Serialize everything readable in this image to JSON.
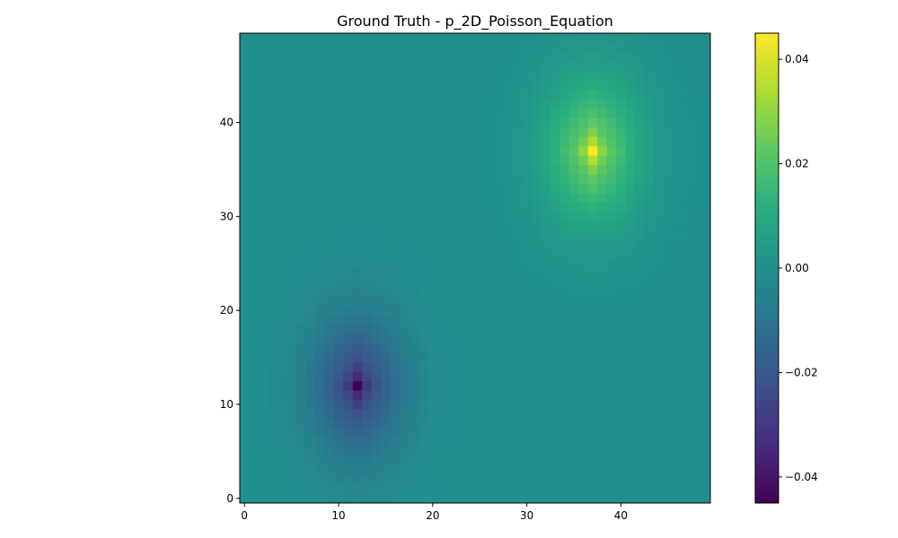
{
  "chart_data": {
    "type": "heatmap",
    "title": "Ground Truth - p_2D_Poisson_Equation",
    "xlabel": "",
    "ylabel": "",
    "grid_shape": [
      50,
      50
    ],
    "origin": "lower",
    "xlim": [
      -0.5,
      49.5
    ],
    "ylim": [
      -0.5,
      49.5
    ],
    "x_ticks": [
      0,
      10,
      20,
      30,
      40
    ],
    "x_tick_labels": [
      "0",
      "10",
      "20",
      "30",
      "40"
    ],
    "y_ticks": [
      0,
      10,
      20,
      30,
      40
    ],
    "y_tick_labels": [
      "0",
      "10",
      "20",
      "30",
      "40"
    ],
    "colormap": "viridis",
    "vmin": -0.045,
    "vmax": 0.045,
    "colorbar": {
      "ticks": [
        -0.04,
        -0.02,
        0.0,
        0.02,
        0.04
      ],
      "tick_labels": [
        "−0.04",
        "−0.02",
        "0.00",
        "0.02",
        "0.04"
      ]
    },
    "extrema": [
      {
        "x": 37,
        "y": 37,
        "value": 0.045
      },
      {
        "x": 12,
        "y": 12,
        "value": -0.045
      }
    ]
  }
}
